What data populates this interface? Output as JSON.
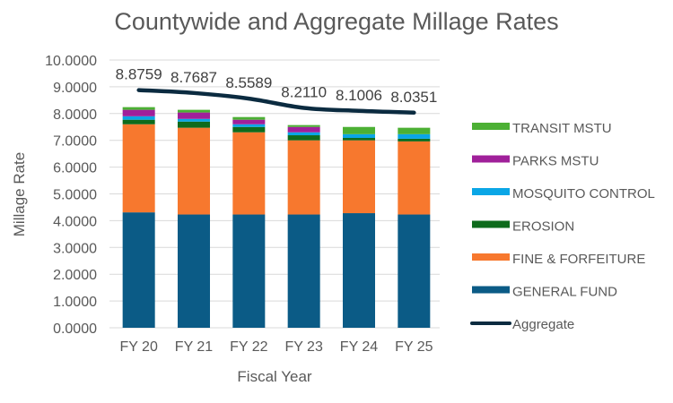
{
  "chart_data": {
    "type": "bar",
    "stacked": true,
    "title": "Countywide and Aggregate Millage Rates",
    "xlabel": "Fiscal Year",
    "ylabel": "Millage Rate",
    "ylim": [
      0,
      10
    ],
    "yticks": [
      "0.0000",
      "1.0000",
      "2.0000",
      "3.0000",
      "4.0000",
      "5.0000",
      "6.0000",
      "7.0000",
      "8.0000",
      "9.0000",
      "10.0000"
    ],
    "grid": true,
    "legend_position": "right",
    "categories": [
      "FY 20",
      "FY 21",
      "FY 22",
      "FY 23",
      "FY 24",
      "FY 25"
    ],
    "series": [
      {
        "name": "GENERAL FUND",
        "color": "#0b5b86",
        "values": [
          4.31,
          4.23,
          4.23,
          4.23,
          4.28,
          4.23
        ]
      },
      {
        "name": "FINE & FORFEITURE",
        "color": "#f7782e",
        "values": [
          3.29,
          3.24,
          3.07,
          2.77,
          2.72,
          2.73
        ]
      },
      {
        "name": "EROSION",
        "color": "#0e6b1c",
        "values": [
          0.17,
          0.23,
          0.2,
          0.19,
          0.09,
          0.1
        ]
      },
      {
        "name": "MOSQUITO CONTROL",
        "color": "#0aa6e6",
        "values": [
          0.13,
          0.1,
          0.1,
          0.11,
          0.14,
          0.17
        ]
      },
      {
        "name": "PARKS MSTU",
        "color": "#a0209a",
        "values": [
          0.24,
          0.24,
          0.17,
          0.2,
          0,
          0
        ]
      },
      {
        "name": "TRANSIT MSTU",
        "color": "#4cb034",
        "values": [
          0.1,
          0.1,
          0.1,
          0.07,
          0.27,
          0.24
        ]
      }
    ],
    "line_series": {
      "name": "Aggregate",
      "color": "#0b2b40",
      "values": [
        8.8759,
        8.7687,
        8.5589,
        8.211,
        8.1006,
        8.0351
      ],
      "labels": [
        "8.8759",
        "8.7687",
        "8.5589",
        "8.2110",
        "8.1006",
        "8.0351"
      ]
    },
    "legend_order": [
      "TRANSIT MSTU",
      "PARKS MSTU",
      "MOSQUITO CONTROL",
      "EROSION",
      "FINE & FORFEITURE",
      "GENERAL FUND",
      "Aggregate"
    ]
  }
}
